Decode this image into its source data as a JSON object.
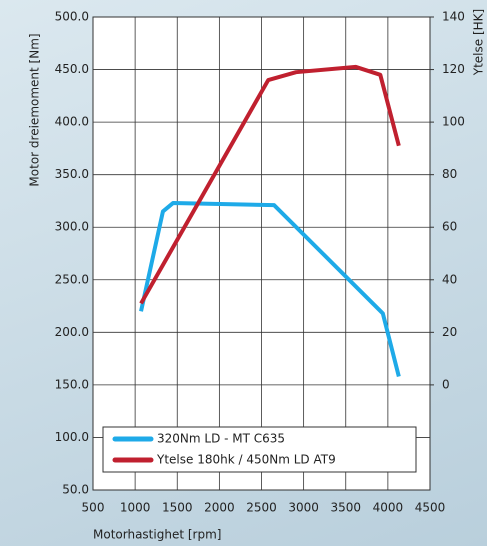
{
  "chart_data": {
    "type": "line",
    "xlabel": "Motorhastighet [rpm]",
    "ylabel": "Motor dreiemoment [Nm]",
    "y2label": "Ytelse [HK]",
    "xlim": [
      500,
      4500
    ],
    "xticks": [
      500,
      1000,
      1500,
      2000,
      2500,
      3000,
      3500,
      4000,
      4500
    ],
    "ylim": [
      50,
      500
    ],
    "yticks": [
      {
        "value": 50,
        "label": "50.0"
      },
      {
        "value": 100,
        "label": "100.0"
      },
      {
        "value": 150,
        "label": "150.0"
      },
      {
        "value": 200,
        "label": "200.0"
      },
      {
        "value": 250,
        "label": "250.0"
      },
      {
        "value": 300,
        "label": "300.0"
      },
      {
        "value": 350,
        "label": "350.0"
      },
      {
        "value": 400,
        "label": "400.0"
      },
      {
        "value": 450,
        "label": "450.0"
      },
      {
        "value": 500,
        "label": "500.0"
      }
    ],
    "y2lim": [
      -40,
      140
    ],
    "y2ticks": [
      0,
      20,
      40,
      60,
      80,
      100,
      120,
      140
    ],
    "grid": true,
    "legend": "lower left",
    "series": [
      {
        "name": "320Nm LD - MT C635",
        "color": "#1eaae8",
        "x": [
          1070,
          1330,
          1450,
          2650,
          3940,
          4130
        ],
        "values": [
          220,
          315,
          323,
          321,
          218,
          158
        ]
      },
      {
        "name": "Ytelse 180hk / 450Nm LD AT9",
        "color": "#c0202f",
        "axis": "y2",
        "x": [
          1070,
          2580,
          2910,
          3620,
          3910,
          4130
        ],
        "values": [
          31,
          116,
          119,
          121,
          118,
          91
        ]
      }
    ]
  }
}
